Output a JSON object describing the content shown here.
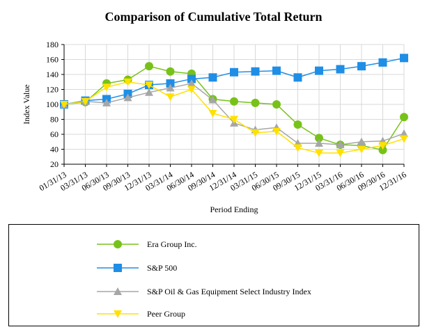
{
  "chart_data": {
    "type": "line",
    "title": "Comparison of Cumulative Total Return",
    "xlabel": "Period Ending",
    "ylabel": "Index Value",
    "ylim": [
      20,
      180
    ],
    "yticks": [
      20,
      40,
      60,
      80,
      100,
      120,
      140,
      160,
      180
    ],
    "grid": true,
    "legend_position": "bottom",
    "categories": [
      "01/31/13",
      "03/31/13",
      "06/30/13",
      "09/30/13",
      "12/31/13",
      "03/31/14",
      "06/30/14",
      "09/30/14",
      "12/31/14",
      "03/31/15",
      "06/30/15",
      "09/30/15",
      "12/31/15",
      "03/31/16",
      "06/30/16",
      "09/30/16",
      "12/31/16"
    ],
    "series": [
      {
        "name": "Era Group Inc.",
        "color": "#77c219",
        "marker": "circle",
        "values": [
          100,
          103,
          128,
          133,
          151,
          144,
          141,
          107,
          104,
          102,
          100,
          73,
          55,
          46,
          45,
          39,
          83
        ]
      },
      {
        "name": "S&P 500",
        "color": "#1f8ee6",
        "marker": "square",
        "values": [
          100,
          105,
          107,
          114,
          126,
          128,
          134,
          136,
          143,
          144,
          145,
          136,
          145,
          147,
          151,
          156,
          162
        ]
      },
      {
        "name": "S&P Oil & Gas Equipment Select Industry Index",
        "color": "#a6a6a6",
        "marker": "triangle-up",
        "values": [
          100,
          104,
          102,
          109,
          116,
          122,
          128,
          106,
          75,
          66,
          69,
          48,
          48,
          46,
          50,
          51,
          61
        ]
      },
      {
        "name": "Peer Group",
        "color": "#ffe100",
        "marker": "triangle-down",
        "values": [
          100,
          104,
          123,
          130,
          126,
          110,
          120,
          88,
          80,
          62,
          64,
          42,
          35,
          35,
          40,
          45,
          54
        ]
      }
    ]
  }
}
